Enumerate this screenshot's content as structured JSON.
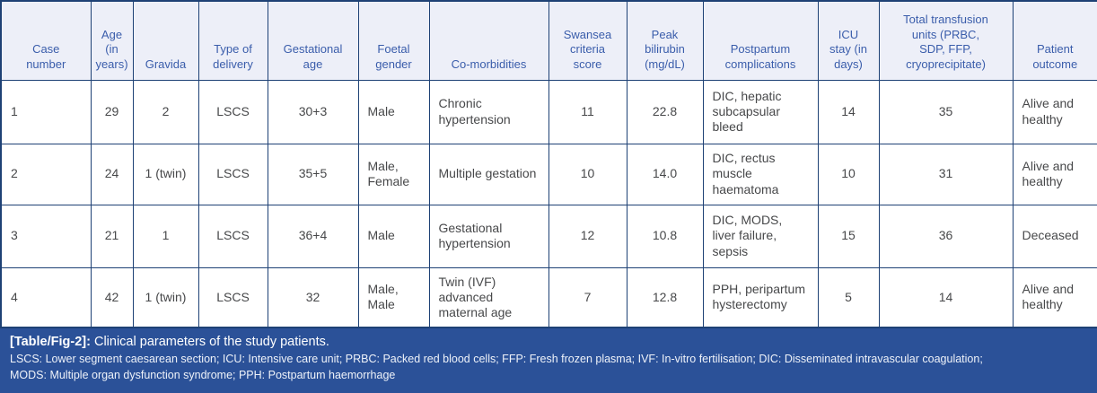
{
  "colors": {
    "border": "#1e4175",
    "header_bg": "#edeff8",
    "header_text": "#3a5dab",
    "cell_text": "#47484a",
    "footer_bg": "#2b5198",
    "footer_text": "#ffffff"
  },
  "table": {
    "columns": [
      "Case\nnumber",
      "Age\n(in\nyears)",
      "Gravida",
      "Type of\ndelivery",
      "Gestational\nage",
      "Foetal\ngender",
      "Co-morbidities",
      "Swansea\ncriteria\nscore",
      "Peak\nbilirubin\n(mg/dL)",
      "Postpartum\ncomplications",
      "ICU\nstay (in\ndays)",
      "Total transfusion\nunits (PRBC,\nSDP, FFP,\ncryoprecipitate)",
      "Patient\noutcome"
    ],
    "rows": [
      [
        "1",
        "29",
        "2",
        "LSCS",
        "30+3",
        "Male",
        "Chronic hypertension",
        "11",
        "22.8",
        "DIC, hepatic subcapsular bleed",
        "14",
        "35",
        "Alive and healthy"
      ],
      [
        "2",
        "24",
        "1 (twin)",
        "LSCS",
        "35+5",
        "Male, Female",
        "Multiple gestation",
        "10",
        "14.0",
        "DIC, rectus muscle haematoma",
        "10",
        "31",
        "Alive and healthy"
      ],
      [
        "3",
        "21",
        "1",
        "LSCS",
        "36+4",
        "Male",
        "Gestational hypertension",
        "12",
        "10.8",
        "DIC, MODS, liver failure, sepsis",
        "15",
        "36",
        "Deceased"
      ],
      [
        "4",
        "42",
        "1 (twin)",
        "LSCS",
        "32",
        "Male, Male",
        "Twin (IVF) advanced maternal age",
        "7",
        "12.8",
        "PPH, peripartum hysterectomy",
        "5",
        "14",
        "Alive and healthy"
      ]
    ]
  },
  "caption": {
    "label": "[Table/Fig-2]:",
    "title": "Clinical parameters of the study patients.",
    "abbr_line1": "LSCS: Lower segment caesarean section; ICU: Intensive care unit; PRBC: Packed red blood cells; FFP: Fresh frozen plasma; IVF: In-vitro fertilisation; DIC: Disseminated intravascular coagulation;",
    "abbr_line2": "MODS: Multiple organ dysfunction syndrome; PPH: Postpartum haemorrhage"
  }
}
